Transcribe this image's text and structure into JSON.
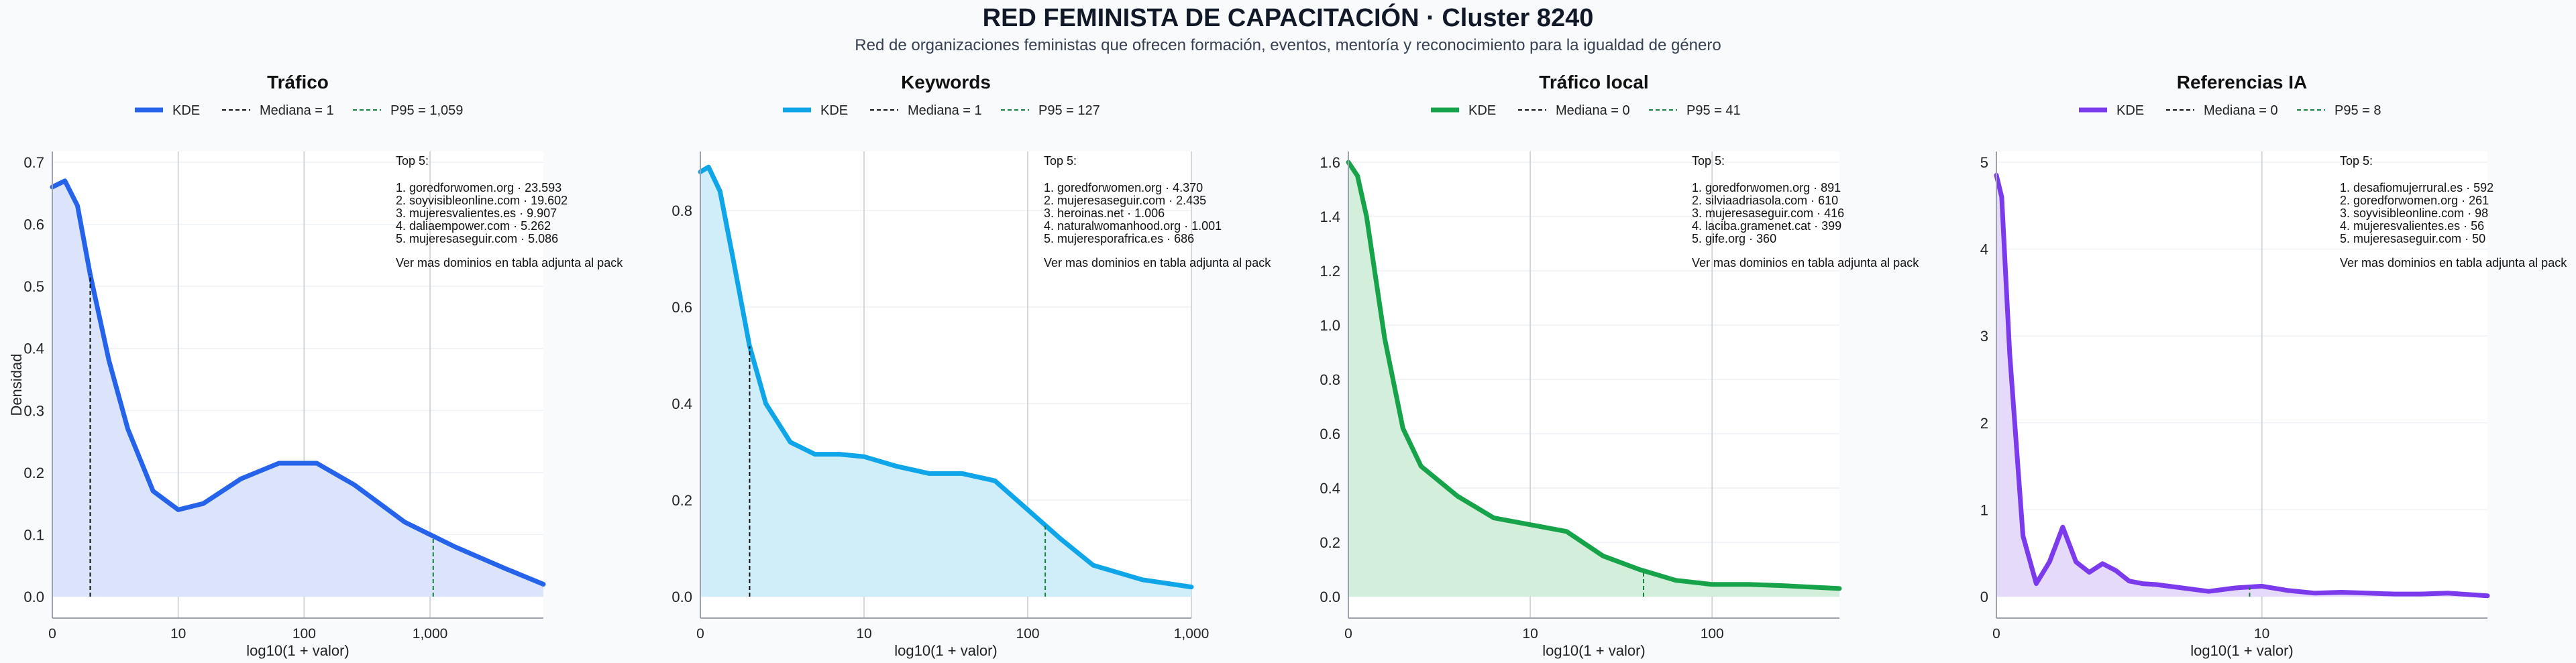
{
  "title": "RED FEMINISTA DE CAPACITACIÓN · Cluster 8240",
  "subtitle": "Red de organizaciones feministas que ofrecen formación, eventos, mentoría y reconocimiento para la igualdad de género",
  "chart_data": [
    {
      "type": "area",
      "title": "Tráfico",
      "xlabel": "log10(1 + valor)",
      "ylabel": "Densidad",
      "color": "#2563eb",
      "fill": "#dbe4fa",
      "xlim": [
        0,
        3.9
      ],
      "ylim": [
        0,
        0.7
      ],
      "xticks": [
        {
          "v": 0,
          "label": "0"
        },
        {
          "v": 1,
          "label": "10"
        },
        {
          "v": 2,
          "label": "100"
        },
        {
          "v": 3,
          "label": "1,000"
        }
      ],
      "yticks": [
        {
          "v": 0,
          "label": "0.0"
        },
        {
          "v": 0.1,
          "label": "0.1"
        },
        {
          "v": 0.2,
          "label": "0.2"
        },
        {
          "v": 0.3,
          "label": "0.3"
        },
        {
          "v": 0.4,
          "label": "0.4"
        },
        {
          "v": 0.5,
          "label": "0.5"
        },
        {
          "v": 0.6,
          "label": "0.6"
        },
        {
          "v": 0.7,
          "label": "0.7"
        }
      ],
      "x": [
        0,
        0.1,
        0.2,
        0.3,
        0.45,
        0.6,
        0.8,
        1.0,
        1.2,
        1.5,
        1.8,
        2.1,
        2.4,
        2.8,
        3.2,
        3.6,
        3.9
      ],
      "y": [
        0.66,
        0.67,
        0.63,
        0.52,
        0.38,
        0.27,
        0.17,
        0.14,
        0.15,
        0.19,
        0.215,
        0.215,
        0.18,
        0.12,
        0.08,
        0.045,
        0.02
      ],
      "legend": {
        "kde": "KDE",
        "median": "Mediana = 1",
        "p95": "P95 = 1,059"
      },
      "median_x": 0.301,
      "p95_x": 3.025,
      "top_title": "Top 5:",
      "top": [
        "1. goredforwomen.org · 23.593",
        "2. soyvisibleonline.com · 19.602",
        "3. mujeresvalientes.es · 9.907",
        "4. daliaempower.com · 5.262",
        "5. mujeresaseguir.com · 5.086"
      ],
      "note": "Ver mas dominios en tabla adjunta al pack"
    },
    {
      "type": "area",
      "title": "Keywords",
      "xlabel": "log10(1 + valor)",
      "color": "#0ea5e9",
      "fill": "#d0edfa",
      "xlim": [
        0,
        3.0
      ],
      "ylim": [
        0,
        0.9
      ],
      "xticks": [
        {
          "v": 0,
          "label": "0"
        },
        {
          "v": 1,
          "label": "10"
        },
        {
          "v": 2,
          "label": "100"
        },
        {
          "v": 3,
          "label": "1,000"
        }
      ],
      "yticks": [
        {
          "v": 0,
          "label": "0.0"
        },
        {
          "v": 0.2,
          "label": "0.2"
        },
        {
          "v": 0.4,
          "label": "0.4"
        },
        {
          "v": 0.6,
          "label": "0.6"
        },
        {
          "v": 0.8,
          "label": "0.8"
        }
      ],
      "x": [
        0,
        0.05,
        0.12,
        0.2,
        0.3,
        0.4,
        0.55,
        0.7,
        0.85,
        1.0,
        1.2,
        1.4,
        1.6,
        1.8,
        2.0,
        2.2,
        2.4,
        2.7,
        3.0
      ],
      "y": [
        0.88,
        0.89,
        0.84,
        0.7,
        0.52,
        0.4,
        0.32,
        0.295,
        0.295,
        0.29,
        0.27,
        0.255,
        0.255,
        0.24,
        0.18,
        0.12,
        0.065,
        0.035,
        0.02
      ],
      "legend": {
        "kde": "KDE",
        "median": "Mediana = 1",
        "p95": "P95 = 127"
      },
      "median_x": 0.301,
      "p95_x": 2.107,
      "top_title": "Top 5:",
      "top": [
        "1. goredforwomen.org · 4.370",
        "2. mujeresaseguir.com · 2.435",
        "3. heroinas.net · 1.006",
        "4. naturalwomanhood.org · 1.001",
        "5. mujeresporafrica.es · 686"
      ],
      "note": "Ver mas dominios en tabla adjunta al pack"
    },
    {
      "type": "area",
      "title": "Tráfico local",
      "xlabel": "log10(1 + valor)",
      "color": "#16a34a",
      "fill": "#d3eedb",
      "xlim": [
        0,
        2.7
      ],
      "ylim": [
        0,
        1.6
      ],
      "xticks": [
        {
          "v": 0,
          "label": "0"
        },
        {
          "v": 1,
          "label": "10"
        },
        {
          "v": 2,
          "label": "100"
        }
      ],
      "yticks": [
        {
          "v": 0,
          "label": "0.0"
        },
        {
          "v": 0.2,
          "label": "0.2"
        },
        {
          "v": 0.4,
          "label": "0.4"
        },
        {
          "v": 0.6,
          "label": "0.6"
        },
        {
          "v": 0.8,
          "label": "0.8"
        },
        {
          "v": 1.0,
          "label": "1.0"
        },
        {
          "v": 1.2,
          "label": "1.2"
        },
        {
          "v": 1.4,
          "label": "1.4"
        },
        {
          "v": 1.6,
          "label": "1.6"
        }
      ],
      "x": [
        0,
        0.05,
        0.1,
        0.2,
        0.3,
        0.4,
        0.6,
        0.8,
        1.0,
        1.2,
        1.4,
        1.6,
        1.8,
        2.0,
        2.2,
        2.4,
        2.7
      ],
      "y": [
        1.6,
        1.55,
        1.4,
        0.95,
        0.62,
        0.48,
        0.37,
        0.29,
        0.265,
        0.24,
        0.15,
        0.1,
        0.06,
        0.045,
        0.045,
        0.04,
        0.03
      ],
      "legend": {
        "kde": "KDE",
        "median": "Mediana = 0",
        "p95": "P95 = 41"
      },
      "median_x": 0,
      "p95_x": 1.623,
      "top_title": "Top 5:",
      "top": [
        "1. goredforwomen.org · 891",
        "2. silviaadriasola.com · 610",
        "3. mujeresaseguir.com · 416",
        "4. laciba.gramenet.cat · 399",
        "5. gife.org · 360"
      ],
      "note": "Ver mas dominios en tabla adjunta al pack"
    },
    {
      "type": "area",
      "title": "Referencias IA",
      "xlabel": "log10(1 + valor)",
      "color": "#7c3aed",
      "fill": "#e6dafa",
      "xlim": [
        0,
        1.85
      ],
      "ylim": [
        0,
        5
      ],
      "xticks": [
        {
          "v": 0,
          "label": "0"
        },
        {
          "v": 1.0,
          "label": "10"
        }
      ],
      "yticks": [
        {
          "v": 0,
          "label": "0"
        },
        {
          "v": 1,
          "label": "1"
        },
        {
          "v": 2,
          "label": "2"
        },
        {
          "v": 3,
          "label": "3"
        },
        {
          "v": 4,
          "label": "4"
        },
        {
          "v": 5,
          "label": "5"
        }
      ],
      "x": [
        0,
        0.02,
        0.05,
        0.1,
        0.15,
        0.2,
        0.25,
        0.3,
        0.35,
        0.4,
        0.45,
        0.5,
        0.55,
        0.6,
        0.7,
        0.8,
        0.9,
        1.0,
        1.1,
        1.2,
        1.3,
        1.4,
        1.5,
        1.6,
        1.7,
        1.85
      ],
      "y": [
        4.85,
        4.6,
        2.8,
        0.7,
        0.15,
        0.4,
        0.8,
        0.4,
        0.28,
        0.38,
        0.3,
        0.18,
        0.15,
        0.14,
        0.1,
        0.06,
        0.1,
        0.12,
        0.07,
        0.04,
        0.05,
        0.04,
        0.03,
        0.03,
        0.04,
        0.01
      ],
      "legend": {
        "kde": "KDE",
        "median": "Mediana = 0",
        "p95": "P95 = 8"
      },
      "median_x": 0,
      "p95_x": 0.954,
      "top_title": "Top 5:",
      "top": [
        "1. desafiomujerrural.es · 592",
        "2. goredforwomen.org · 261",
        "3. soyvisibleonline.com · 98",
        "4. mujeresvalientes.es · 56",
        "5. mujeresaseguir.com · 50"
      ],
      "note": "Ver mas dominios en tabla adjunta al pack"
    }
  ]
}
